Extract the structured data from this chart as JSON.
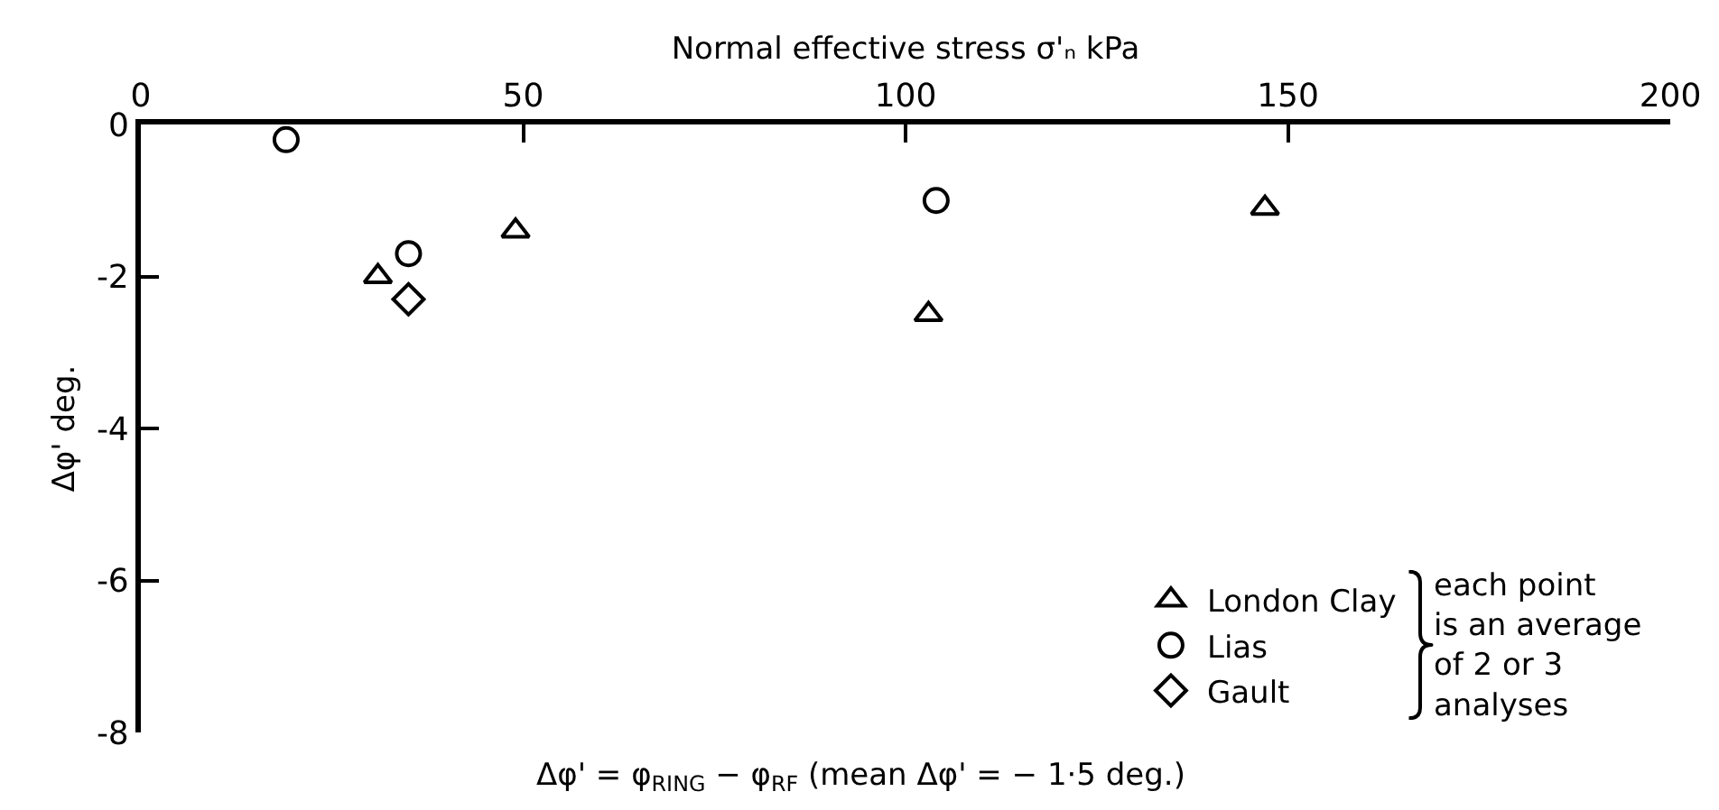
{
  "chart_data": {
    "type": "scatter",
    "xlabel": "Normal effective stress σ'ₙ kPa",
    "ylabel": "Δφ' deg.",
    "xlim": [
      0,
      200
    ],
    "xticks": [
      0,
      50,
      100,
      150,
      200
    ],
    "ylim": [
      -8,
      0
    ],
    "yticks": [
      0,
      -2,
      -4,
      -6,
      -8
    ],
    "legend": "bottom right",
    "series": [
      {
        "name": "London Clay",
        "color": "#000000",
        "marker": "triangle",
        "x": [
          31,
          49,
          103,
          147
        ],
        "values": [
          -2.0,
          -1.4,
          -2.5,
          -1.1
        ]
      },
      {
        "name": "Lias",
        "color": "#000000",
        "marker": "circle",
        "x": [
          19,
          35,
          104
        ],
        "values": [
          -0.2,
          -1.7,
          -1.0
        ]
      },
      {
        "name": "Gault",
        "color": "#000000",
        "marker": "diamond",
        "x": [
          35
        ],
        "values": [
          -2.3
        ]
      }
    ],
    "annotations": [
      "each point\nis an average\nof 2 or 3\nanalyses",
      "Δφ' = φ$_{RING}$ − φ$_{RF}$ (mean Δφ' = − 1·5 deg.)"
    ]
  }
}
